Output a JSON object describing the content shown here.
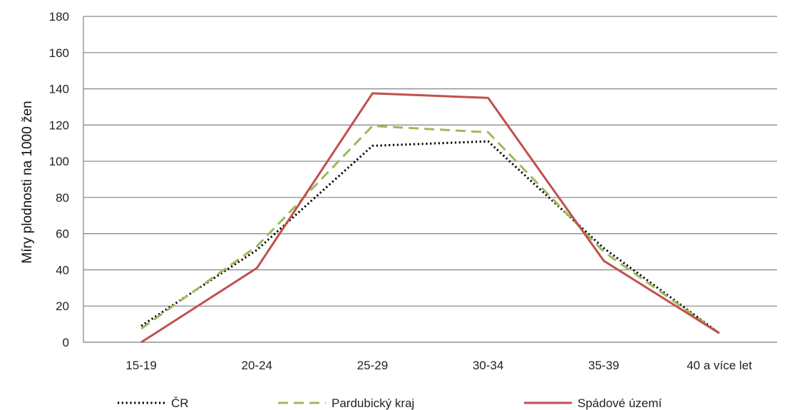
{
  "chart_data": {
    "type": "line",
    "categories": [
      "15-19",
      "20-24",
      "25-29",
      "30-34",
      "35-39",
      "40 a více let"
    ],
    "ylabel": "Míry plodnosti na 1000 žen",
    "ylim": [
      0,
      180
    ],
    "yticks": [
      0,
      20,
      40,
      60,
      80,
      100,
      120,
      140,
      160,
      180
    ],
    "grid": "horizontal",
    "legend_position": "bottom",
    "series": [
      {
        "name": "ČR",
        "values": [
          9,
          51,
          108.5,
          111,
          52,
          5
        ],
        "color": "#000000",
        "style": "dotted"
      },
      {
        "name": "Pardubický kraj",
        "values": [
          7.5,
          53,
          119.5,
          116,
          50,
          5
        ],
        "color": "#9bbb59",
        "style": "dashed"
      },
      {
        "name": "Spádové území",
        "values": [
          0,
          41,
          137.5,
          135,
          45,
          5
        ],
        "color": "#c0504d",
        "style": "solid"
      }
    ]
  }
}
